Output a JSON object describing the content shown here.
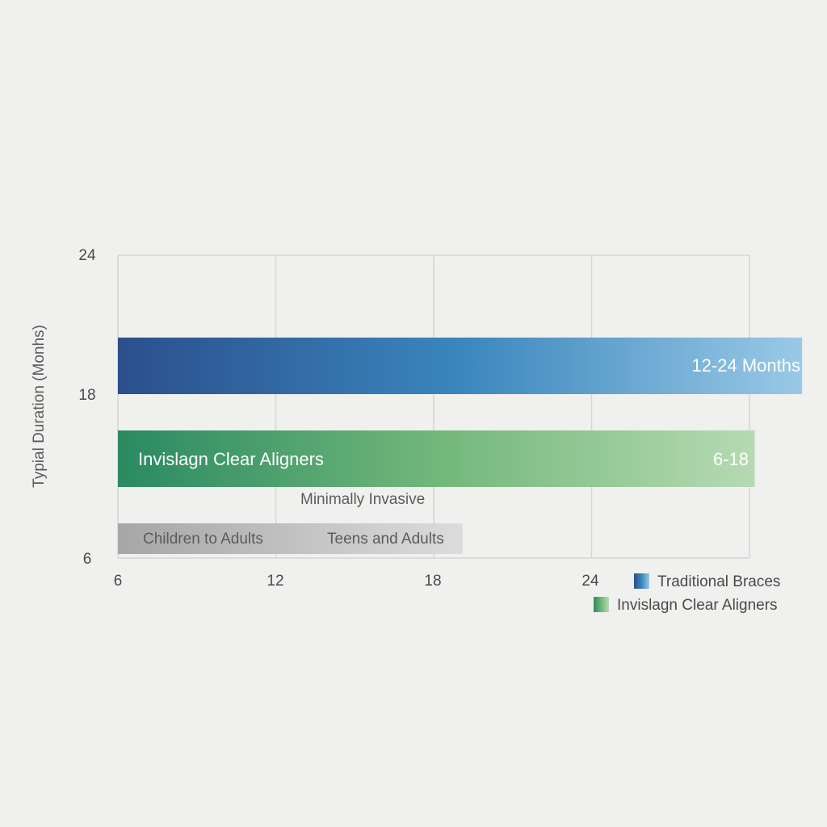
{
  "chart_data": {
    "type": "bar",
    "orientation": "horizontal",
    "title": "",
    "xlabel": "",
    "ylabel": "Typial Duration (Monhs)",
    "xlim": [
      6,
      30
    ],
    "ylim": [
      6,
      24
    ],
    "x_ticks": [
      "6",
      "12",
      "18",
      "24"
    ],
    "y_ticks": [
      "24",
      "18",
      "6"
    ],
    "grid": true,
    "legend_position": "bottom-right",
    "series": [
      {
        "name": "Traditional Braces",
        "start": 6,
        "end": 32,
        "label_right": "12-24 Months",
        "color_start": "#2b4f8c",
        "color_mid": "#3a86bd",
        "color_end": "#9ac9e6"
      },
      {
        "name": "Invislagn Clear Aligners",
        "start": 6,
        "end": 30.2,
        "label_left": "Invislagn Clear Aligners",
        "label_right": "6-18",
        "color_start": "#2a8a62",
        "color_mid": "#72b77a",
        "color_end": "#b6dab3"
      }
    ],
    "annotations": {
      "note": "Minimally Invasive",
      "band": {
        "start": 6,
        "end": 19.1,
        "labels": [
          "Children to Adults",
          "Teens and Adults"
        ],
        "color_start": "#a6a6a6",
        "color_end": "#dcdcdc"
      }
    }
  }
}
